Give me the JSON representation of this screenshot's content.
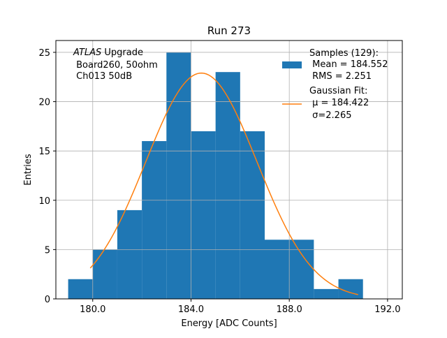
{
  "chart_data": {
    "type": "bar",
    "title": "Run 273",
    "xlabel": "Energy [ADC Counts]",
    "ylabel": "Entries",
    "xlim": [
      178.5,
      192.6
    ],
    "ylim": [
      0,
      26.2
    ],
    "x_ticks": [
      180.0,
      184.0,
      188.0,
      192.0
    ],
    "x_tick_labels": [
      "180.0",
      "184.0",
      "188.0",
      "192.0"
    ],
    "y_ticks": [
      0,
      5,
      10,
      15,
      20,
      25
    ],
    "y_tick_labels": [
      "0",
      "5",
      "10",
      "15",
      "20",
      "25"
    ],
    "grid": true,
    "legend_position": "top-right",
    "histogram": {
      "bin_edges": [
        179.0,
        180.0,
        181.0,
        182.0,
        183.0,
        184.0,
        185.0,
        186.0,
        187.0,
        188.0,
        189.0,
        190.0,
        191.0
      ],
      "counts": [
        2,
        5,
        9,
        16,
        25,
        17,
        23,
        17,
        6,
        6,
        1,
        2
      ],
      "color": "#1f77b4"
    },
    "fit": {
      "mu": 184.422,
      "sigma": 2.265,
      "amplitude": 22.9,
      "x_start": 179.9,
      "x_end": 190.8,
      "color": "#ff7f0e"
    },
    "annotation": {
      "line1_italic": "ATLAS",
      "line1_rest": " Upgrade",
      "line2": " Board260, 50ohm",
      "line3": " Ch013 50dB"
    },
    "legend": {
      "samples_header": "Samples (129):",
      "samples_mean": " Mean = 184.552",
      "samples_rms": " RMS = 2.251",
      "fit_header": "Gaussian Fit:",
      "fit_mu": " μ = 184.422",
      "fit_sigma": " σ=2.265"
    }
  }
}
